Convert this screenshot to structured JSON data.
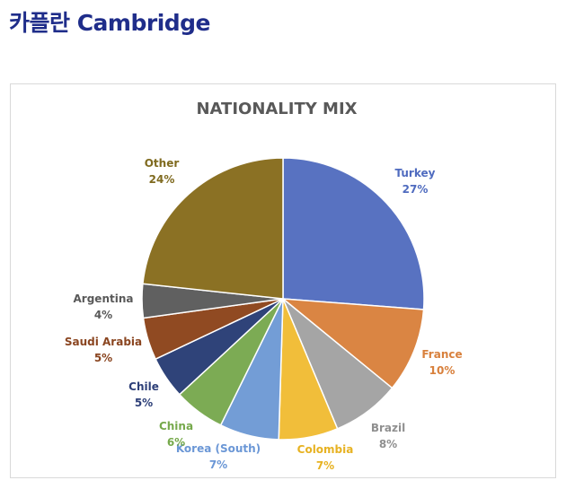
{
  "header": {
    "title": "카플란 Cambridge"
  },
  "chart_data": {
    "type": "pie",
    "title": "NATIONALITY MIX",
    "slices": [
      {
        "name": "Turkey",
        "value": 27,
        "label": "27%",
        "color": "#5872c1"
      },
      {
        "name": "France",
        "value": 10,
        "label": "10%",
        "color": "#da8543"
      },
      {
        "name": "Brazil",
        "value": 8,
        "label": "8%",
        "color": "#a5a5a5"
      },
      {
        "name": "Colombia",
        "value": 7,
        "label": "7%",
        "color": "#f1be3a"
      },
      {
        "name": "Korea (South)",
        "value": 7,
        "label": "7%",
        "color": "#739dd6"
      },
      {
        "name": "China",
        "value": 6,
        "label": "6%",
        "color": "#7cab54"
      },
      {
        "name": "Chile",
        "value": 5,
        "label": "5%",
        "color": "#2f4379"
      },
      {
        "name": "Saudi Arabia",
        "value": 5,
        "label": "5%",
        "color": "#904a22"
      },
      {
        "name": "Argentina",
        "value": 4,
        "label": "4%",
        "color": "#606060"
      },
      {
        "name": "Other",
        "value": 24,
        "label": "24%",
        "color": "#8b7124"
      }
    ],
    "label_colors": {
      "Turkey": "#4f6bbf",
      "France": "#d8803c",
      "Brazil": "#8f8f8f",
      "Colombia": "#e7b222",
      "Korea (South)": "#6b97d6",
      "China": "#76a94c",
      "Chile": "#2d3f78",
      "Saudi Arabia": "#8a4520",
      "Argentina": "#595959",
      "Other": "#7f6a1f"
    }
  }
}
